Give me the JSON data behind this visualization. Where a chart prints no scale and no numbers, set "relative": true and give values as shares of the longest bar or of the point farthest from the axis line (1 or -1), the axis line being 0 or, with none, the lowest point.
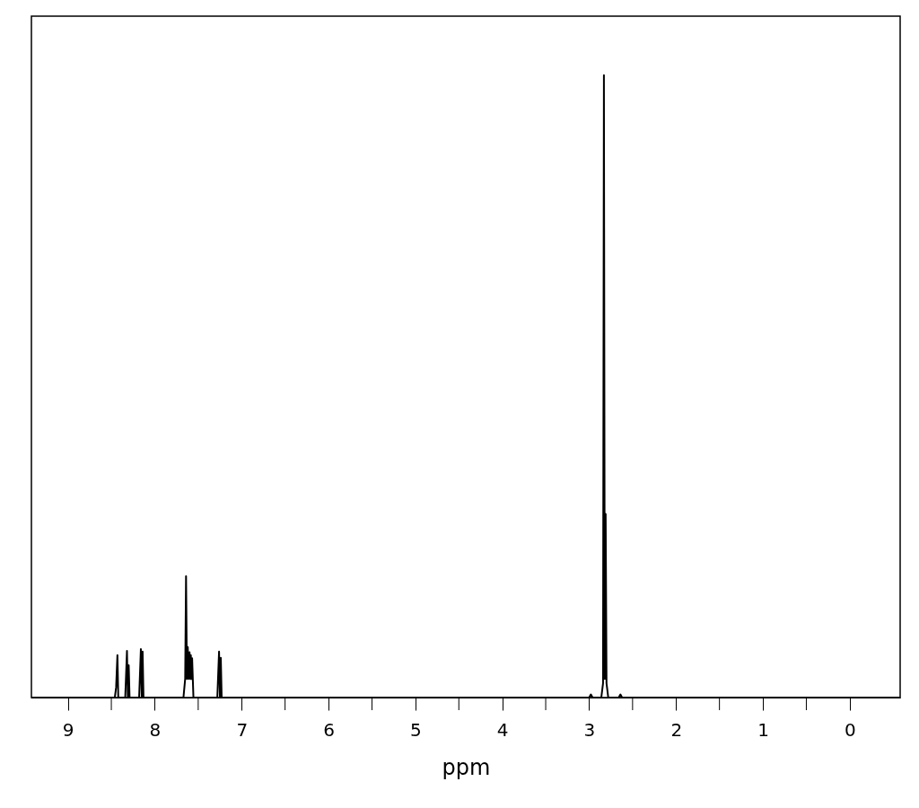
{
  "chart_data": {
    "type": "line",
    "relative": true,
    "xlabel": "ppm",
    "color": "#000000",
    "grid": false,
    "xlim": [
      9.42,
      -0.58
    ],
    "xticks": [
      9,
      {
        "value": 8.5,
        "label": null
      },
      8,
      {
        "value": 7.5,
        "label": null
      },
      7,
      {
        "value": 6.5,
        "label": null
      },
      6,
      {
        "value": 5.5,
        "label": null
      },
      5,
      {
        "value": 4.5,
        "label": null
      },
      4,
      {
        "value": 3.5,
        "label": null
      },
      3,
      {
        "value": 2.5,
        "label": null
      },
      2,
      {
        "value": 1.5,
        "label": null
      },
      1,
      {
        "value": 0.5,
        "label": null
      },
      0
    ],
    "x": [
      9.42,
      8.46,
      8.445,
      8.43,
      8.42,
      8.34,
      8.32,
      8.31,
      8.3,
      8.29,
      8.18,
      8.16,
      8.15,
      8.14,
      8.13,
      7.67,
      7.65,
      7.64,
      7.63,
      7.62,
      7.61,
      7.6,
      7.59,
      7.585,
      7.575,
      7.57,
      7.555,
      7.28,
      7.26,
      7.25,
      7.24,
      7.23,
      3.0,
      2.98,
      2.96,
      2.86,
      2.84,
      2.83,
      2.82,
      2.81,
      2.8,
      2.78,
      2.66,
      2.64,
      2.62,
      -0.58
    ],
    "values": [
      0,
      0,
      0.016,
      0.068,
      0,
      0,
      0.075,
      0,
      0.052,
      0,
      0,
      0.078,
      0,
      0.074,
      0,
      0,
      0.03,
      0.195,
      0.03,
      0.081,
      0.03,
      0.073,
      0.03,
      0.068,
      0.03,
      0.063,
      0,
      0,
      0.074,
      0,
      0.064,
      0,
      0,
      0.005,
      0,
      0,
      0.023,
      1.0,
      0.03,
      0.295,
      0.023,
      0,
      0,
      0.005,
      0,
      0
    ]
  }
}
